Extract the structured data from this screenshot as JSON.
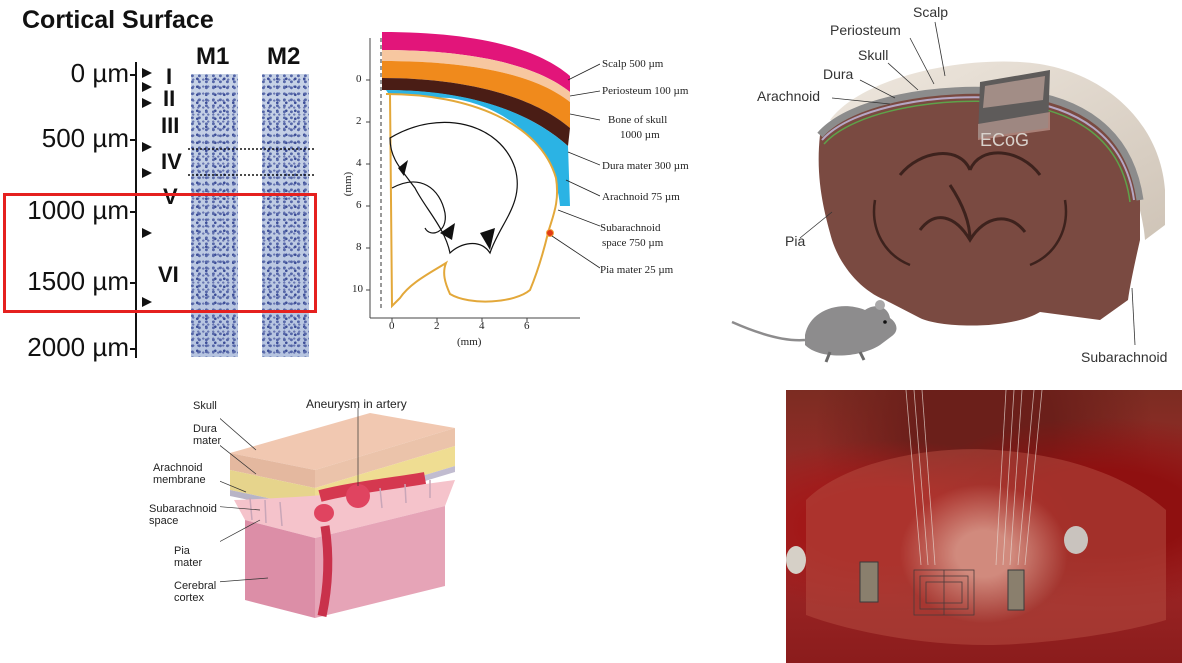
{
  "panel1": {
    "title": "Cortical Surface",
    "columns": [
      "M1",
      "M2"
    ],
    "depth_labels": [
      "0 µm",
      "500 µm",
      "1000 µm",
      "1500 µm",
      "2000 µm"
    ],
    "layers": [
      "I",
      "II",
      "III",
      "IV",
      "V",
      "VI"
    ],
    "highlight_color": "#e5201f"
  },
  "panel2": {
    "labels": [
      "Scalp 500 µm",
      "Periosteum 100 µm",
      "Bone of skull",
      "1000 µm",
      "Dura mater 300 µm",
      "Arachnoid 75 µm",
      "Subarachnoid",
      "space 750 µm",
      "Pia mater 25 µm"
    ],
    "y_ticks": [
      "0",
      "2",
      "4",
      "6",
      "8",
      "10"
    ],
    "x_ticks": [
      "0",
      "2",
      "4",
      "6"
    ],
    "y_axis_label": "(mm)",
    "x_axis_label": "(mm)",
    "colors": {
      "scalp": "#e2157a",
      "periosteum": "#f08a1c",
      "skull": "#4a1d15",
      "dura": "#2bb3e4",
      "pia": "#e3a83a"
    }
  },
  "panel3": {
    "labels": [
      "Scalp",
      "Periosteum",
      "Skull",
      "Dura",
      "Arachnoid",
      "Pia",
      "Subarachnoid"
    ],
    "device_label": "ECoG",
    "colors": {
      "brain": "#7a4a41",
      "skull": "#d8cfc4"
    }
  },
  "panel4": {
    "labels": [
      "Skull",
      "Dura",
      "mater",
      "Arachnoid",
      "membrane",
      "Subarachnoid",
      "space",
      "Pia",
      "mater",
      "Cerebral",
      "cortex"
    ],
    "callout": "Aneurysm in artery"
  },
  "panel5": {
    "description_icon": "photo-ecog-implant"
  }
}
